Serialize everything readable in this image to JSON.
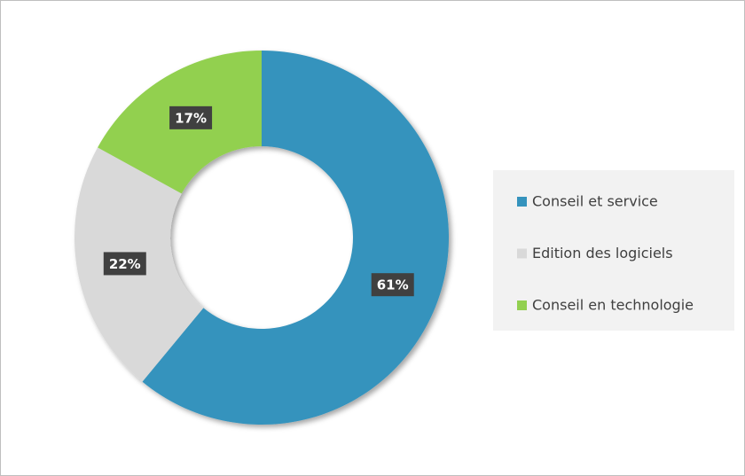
{
  "chart_data": {
    "type": "donut",
    "categories": [
      "Conseil et service",
      "Edition des logiciels",
      "Conseil en technologie"
    ],
    "values": [
      61,
      22,
      17
    ],
    "value_labels": [
      "61%",
      "22%",
      "17%"
    ],
    "colors": [
      "#3593bd",
      "#d9d9d9",
      "#92d050"
    ],
    "legend": "right"
  }
}
